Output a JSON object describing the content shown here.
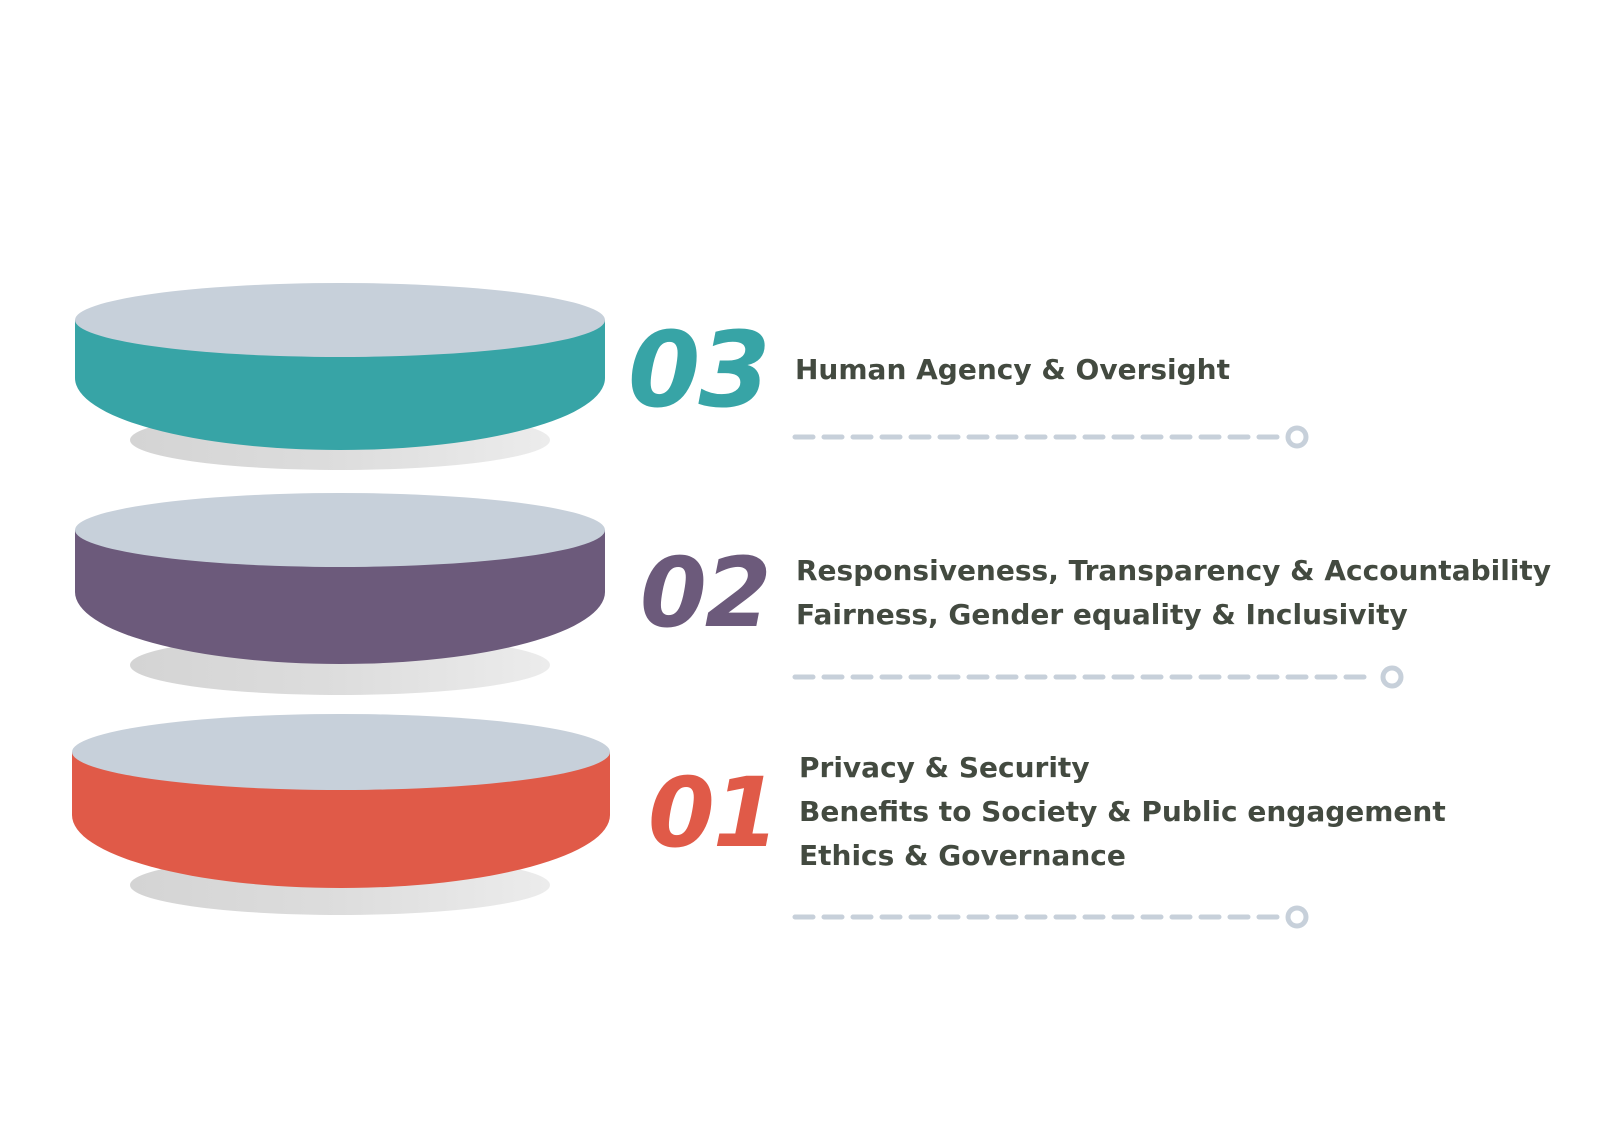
{
  "colors": {
    "top_face": "#c7d0da",
    "shadow": "#dcdcdc",
    "text": "#434a40",
    "connector": "#c7d0da"
  },
  "levels": [
    {
      "number": "03",
      "color": "#37a4a6",
      "lines": [
        "Human Agency & Oversight"
      ]
    },
    {
      "number": "02",
      "color": "#6c5a7b",
      "lines": [
        "Responsiveness, Transparency & Accountability",
        "Fairness, Gender equality & Inclusivity"
      ]
    },
    {
      "number": "01",
      "color": "#e05a48",
      "lines": [
        "Privacy & Security",
        "Benefits to Society &  Public engagement",
        "Ethics & Governance"
      ]
    }
  ]
}
